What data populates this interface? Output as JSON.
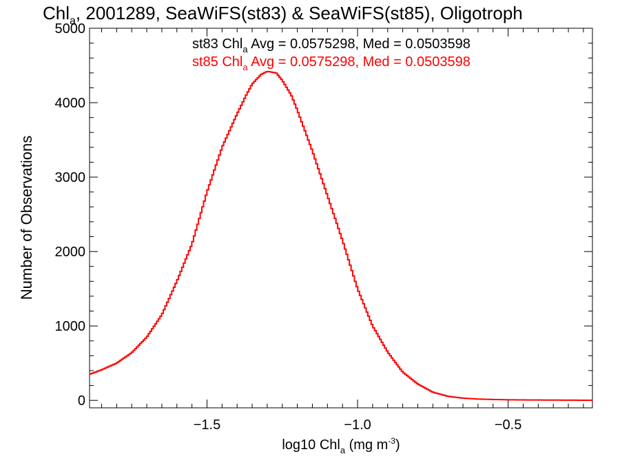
{
  "chart_data": {
    "type": "line",
    "title": {
      "prefix": "Chl",
      "sub": "a",
      "rest": ", 2001289, SeaWiFS(st83) & SeaWiFS(st85), Oligotroph"
    },
    "xlabel": {
      "prefix": "log10 Chl",
      "sub": "a",
      "units": " (mg m",
      "sup": "-3",
      "close": ")"
    },
    "ylabel": "Number of Observations",
    "xlim": [
      -1.89,
      -0.22
    ],
    "ylim": [
      -100,
      5000
    ],
    "x_ticks": [
      {
        "value": -1.5,
        "label": "−1.5"
      },
      {
        "value": -1.0,
        "label": "−1.0"
      },
      {
        "value": -0.5,
        "label": "−0.5"
      }
    ],
    "y_ticks": [
      {
        "value": 0,
        "label": "0"
      },
      {
        "value": 1000,
        "label": "1000"
      },
      {
        "value": 2000,
        "label": "2000"
      },
      {
        "value": 3000,
        "label": "3000"
      },
      {
        "value": 4000,
        "label": "4000"
      },
      {
        "value": 5000,
        "label": "5000"
      }
    ],
    "annotations": [
      {
        "prefix": "st83 Chl",
        "sub": "a",
        "rest": " Avg = 0.0575298, Med = 0.0503598",
        "color": "#000000"
      },
      {
        "prefix": "st85 Chl",
        "sub": "a",
        "rest": " Avg = 0.0575298, Med = 0.0503598",
        "color": "#ff0000"
      }
    ],
    "series": [
      {
        "color": "#ff0000",
        "x": [
          -1.89,
          -1.85,
          -1.8,
          -1.75,
          -1.7,
          -1.65,
          -1.6,
          -1.55,
          -1.5,
          -1.45,
          -1.4,
          -1.37,
          -1.35,
          -1.32,
          -1.3,
          -1.27,
          -1.25,
          -1.22,
          -1.2,
          -1.15,
          -1.1,
          -1.05,
          -1.0,
          -0.95,
          -0.9,
          -0.85,
          -0.8,
          -0.75,
          -0.7,
          -0.65,
          -0.6,
          -0.55,
          -0.5,
          -0.45,
          -0.4,
          -0.35,
          -0.3,
          -0.25,
          -0.22
        ],
        "y": [
          350,
          410,
          500,
          640,
          850,
          1150,
          1600,
          2100,
          2800,
          3400,
          3850,
          4100,
          4250,
          4380,
          4420,
          4400,
          4300,
          4100,
          3900,
          3350,
          2750,
          2150,
          1500,
          1000,
          650,
          380,
          220,
          110,
          55,
          30,
          18,
          12,
          8,
          6,
          5,
          4,
          3,
          2,
          2
        ]
      }
    ]
  }
}
